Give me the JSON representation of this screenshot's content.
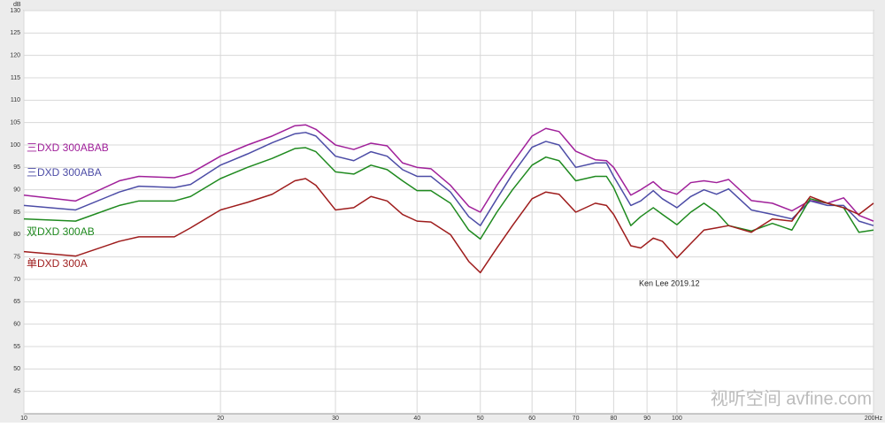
{
  "chart_data": {
    "type": "line",
    "xscale": "log",
    "ylabel": "dB",
    "grid": true,
    "x": [
      10,
      12,
      14,
      15,
      17,
      18,
      20,
      22,
      24,
      26,
      27,
      28,
      30,
      32,
      34,
      36,
      38,
      40,
      42,
      45,
      48,
      50,
      53,
      56,
      60,
      63,
      66,
      70,
      75,
      78,
      80,
      85,
      88,
      92,
      95,
      100,
      105,
      110,
      115,
      120,
      130,
      140,
      150,
      160,
      170,
      180,
      190,
      200
    ],
    "series": [
      {
        "name": "三DXD 300ABAB",
        "color": "#a0209a",
        "values": [
          88.8,
          87.5,
          92,
          93,
          92.7,
          93.7,
          97.5,
          100,
          102,
          104.3,
          104.5,
          103.5,
          100,
          99,
          100.4,
          99.8,
          96,
          95,
          94.7,
          91,
          86.3,
          85,
          91,
          96,
          102,
          103.7,
          103,
          98.6,
          96.7,
          96.5,
          95,
          88.8,
          90,
          91.8,
          90,
          89,
          91.6,
          92,
          91.6,
          92.3,
          87.6,
          87,
          85.3,
          87.6,
          87,
          88.2,
          84.3,
          83
        ]
      },
      {
        "name": "三DXD 300ABA",
        "color": "#4c4ca6",
        "values": [
          86.5,
          85.5,
          89.5,
          90.8,
          90.5,
          91.2,
          95.5,
          98,
          100.5,
          102.5,
          102.8,
          102,
          97.5,
          96.5,
          98.5,
          97.5,
          94.5,
          93,
          93,
          89.5,
          84,
          82,
          88,
          93.5,
          99.5,
          100.8,
          100,
          95,
          96,
          96,
          93,
          86.5,
          87.5,
          89.8,
          88,
          86,
          88.5,
          90,
          89,
          90.2,
          85.5,
          84.5,
          83.5,
          87.5,
          86.5,
          86.5,
          83,
          82
        ]
      },
      {
        "name": "双DXD 300AB",
        "color": "#1f8a1f",
        "values": [
          83.5,
          83,
          86.5,
          87.5,
          87.5,
          88.5,
          92.5,
          95,
          97,
          99.2,
          99.4,
          98.5,
          94,
          93.5,
          95.5,
          94.5,
          92,
          89.8,
          89.8,
          87,
          81,
          79,
          85,
          90,
          95.5,
          97.3,
          96.5,
          92,
          93,
          93,
          90.5,
          82,
          84,
          86,
          84.5,
          82.2,
          85,
          87,
          85,
          82,
          80.8,
          82.5,
          81,
          88,
          87,
          86,
          80.5,
          81
        ]
      },
      {
        "name": "单DXD 300A",
        "color": "#9e1c1c",
        "values": [
          76.2,
          75.2,
          78.5,
          79.5,
          79.5,
          81.5,
          85.5,
          87.2,
          89,
          92,
          92.5,
          91,
          85.5,
          86,
          88.5,
          87.5,
          84.5,
          83,
          82.8,
          80,
          74,
          71.5,
          77,
          82,
          88,
          89.5,
          89,
          85,
          87,
          86.5,
          84.5,
          77.5,
          77,
          79.2,
          78.5,
          74.8,
          78,
          81,
          81.5,
          82,
          80.5,
          83.5,
          83,
          88.5,
          87,
          86,
          84.5,
          87
        ]
      }
    ],
    "xlim": [
      10,
      200
    ],
    "xticks": [
      10,
      20,
      30,
      40,
      50,
      60,
      70,
      80,
      90,
      100,
      {
        "value": 200,
        "label": "200Hz"
      }
    ],
    "ylim": [
      40,
      130
    ],
    "yticks": [
      45,
      50,
      55,
      60,
      65,
      70,
      75,
      80,
      85,
      90,
      95,
      100,
      105,
      110,
      115,
      120,
      125,
      130
    ],
    "annotation": "Ken Lee 2019.12",
    "watermark": "视听空间 avfine.com"
  }
}
